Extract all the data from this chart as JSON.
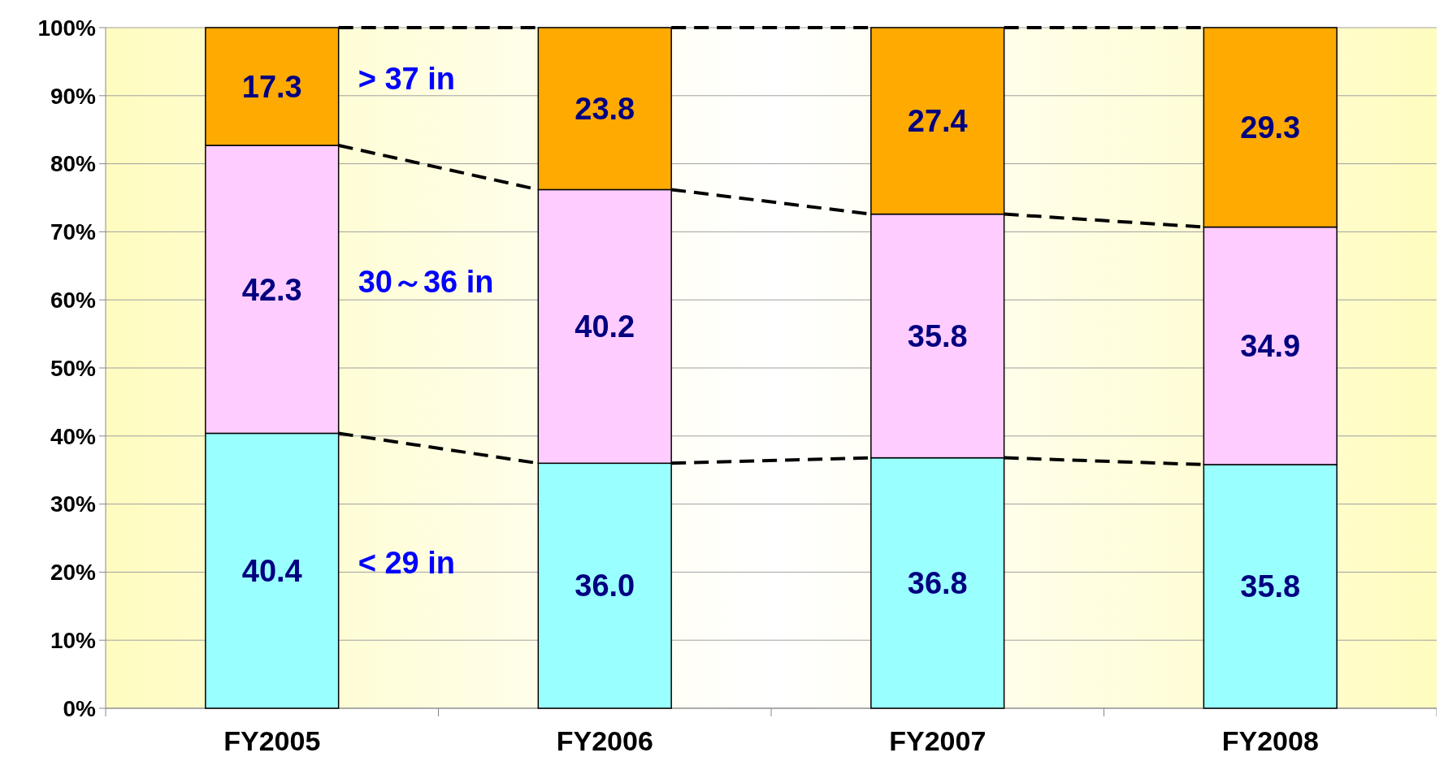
{
  "chart_data": {
    "type": "bar",
    "stacked": true,
    "categories": [
      "FY2005",
      "FY2006",
      "FY2007",
      "FY2008"
    ],
    "series": [
      {
        "name": "< 29 in",
        "color": "#99ffff",
        "values": [
          40.4,
          36.0,
          36.8,
          35.8
        ],
        "value_labels": [
          "40.4",
          "36.0",
          "36.8",
          "35.8"
        ]
      },
      {
        "name": "30～36 in",
        "color": "#ffccff",
        "values": [
          42.3,
          40.2,
          35.8,
          34.9
        ],
        "value_labels": [
          "42.3",
          "40.2",
          "35.8",
          "34.9"
        ]
      },
      {
        "name": "> 37 in",
        "color": "#ffaa00",
        "values": [
          17.3,
          23.8,
          27.4,
          29.3
        ],
        "value_labels": [
          "17.3",
          "23.8",
          "27.4",
          "29.3"
        ]
      }
    ],
    "ylim": [
      0,
      100
    ],
    "yticks": [
      {
        "value": 0,
        "label": "0%"
      },
      {
        "value": 10,
        "label": "10%"
      },
      {
        "value": 20,
        "label": "20%"
      },
      {
        "value": 30,
        "label": "30%"
      },
      {
        "value": 40,
        "label": "40%"
      },
      {
        "value": 50,
        "label": "50%"
      },
      {
        "value": 60,
        "label": "60%"
      },
      {
        "value": 70,
        "label": "70%"
      },
      {
        "value": 80,
        "label": "80%"
      },
      {
        "value": 90,
        "label": "90%"
      },
      {
        "value": 100,
        "label": "100%"
      }
    ],
    "grid": "y",
    "legend": false
  }
}
